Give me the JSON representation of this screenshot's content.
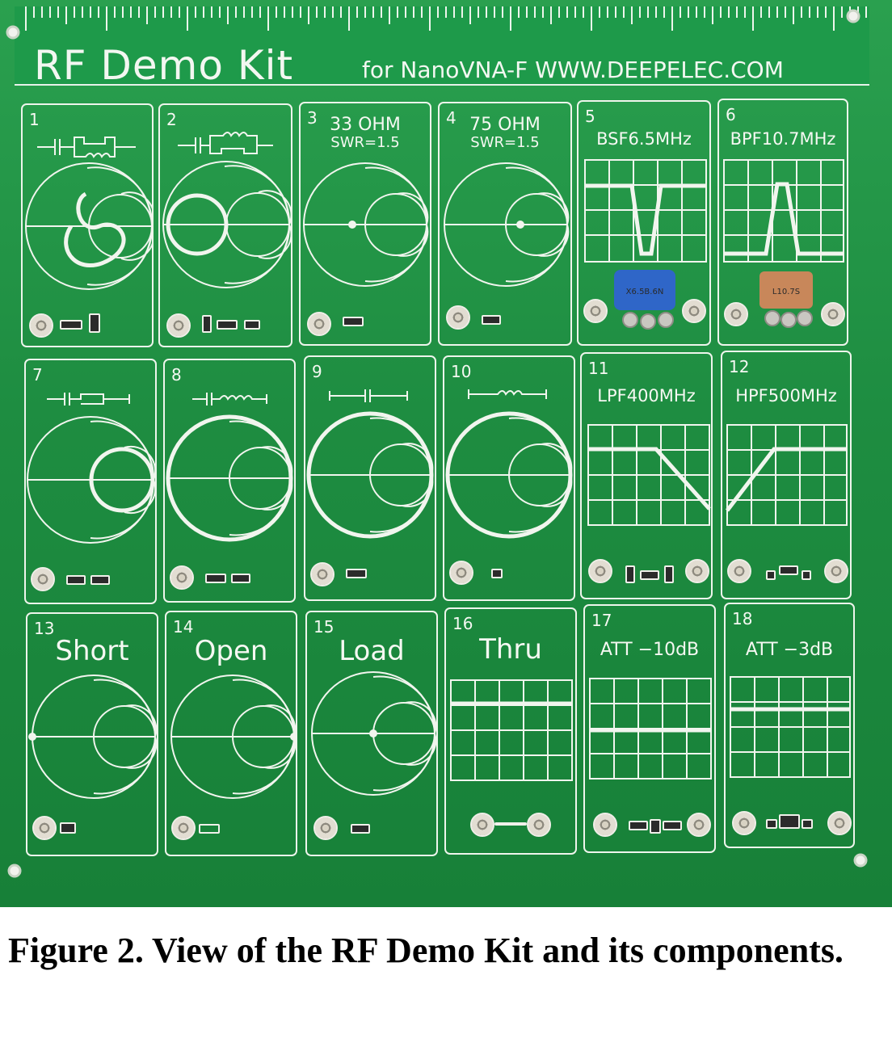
{
  "board": {
    "title": "RF Demo Kit",
    "subtitle": "for NanoVNA-F  WWW.DEEPELEC.COM"
  },
  "panels": [
    {
      "num": "1",
      "label": "",
      "sub": ""
    },
    {
      "num": "2",
      "label": "",
      "sub": ""
    },
    {
      "num": "3",
      "label": "33 OHM",
      "sub": "SWR=1.5"
    },
    {
      "num": "4",
      "label": "75 OHM",
      "sub": "SWR=1.5"
    },
    {
      "num": "5",
      "label": "BSF6.5MHz",
      "sub": ""
    },
    {
      "num": "6",
      "label": "BPF10.7MHz",
      "sub": ""
    },
    {
      "num": "7",
      "label": "",
      "sub": ""
    },
    {
      "num": "8",
      "label": "",
      "sub": ""
    },
    {
      "num": "9",
      "label": "",
      "sub": ""
    },
    {
      "num": "10",
      "label": "",
      "sub": ""
    },
    {
      "num": "11",
      "label": "LPF400MHz",
      "sub": ""
    },
    {
      "num": "12",
      "label": "HPF500MHz",
      "sub": ""
    },
    {
      "num": "13",
      "label": "Short",
      "sub": ""
    },
    {
      "num": "14",
      "label": "Open",
      "sub": ""
    },
    {
      "num": "15",
      "label": "Load",
      "sub": ""
    },
    {
      "num": "16",
      "label": "Thru",
      "sub": ""
    },
    {
      "num": "17",
      "label": "ATT −10dB",
      "sub": ""
    },
    {
      "num": "18",
      "label": "ATT −3dB",
      "sub": ""
    }
  ],
  "components": {
    "crystal_5": "X6.5B.6N",
    "crystal_6": "L10.7S"
  },
  "caption": "Figure 2. View of the RF Demo Kit and its components."
}
